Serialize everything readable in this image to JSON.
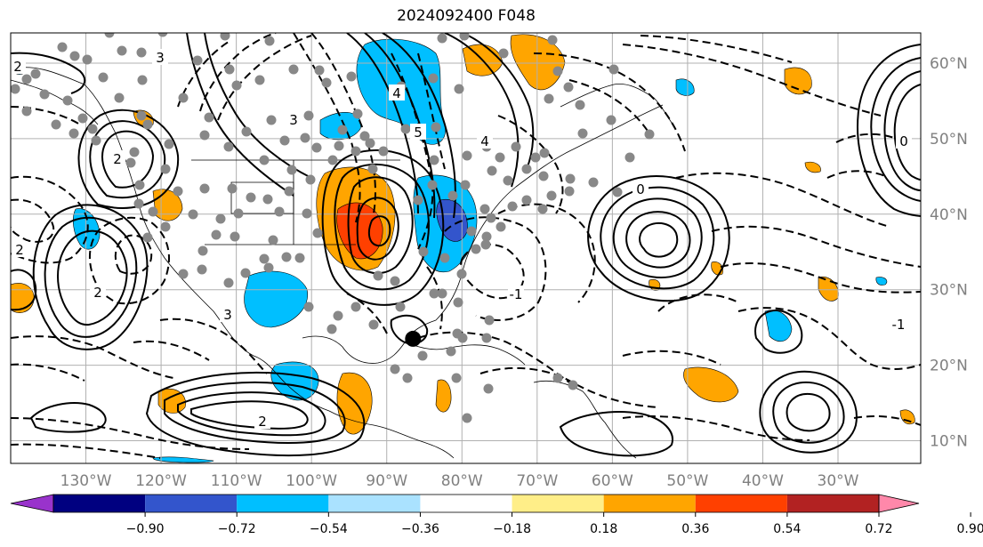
{
  "title": "2024092400 F048",
  "map": {
    "projection": "PlateCarree",
    "lon_range": [
      -140,
      -19
    ],
    "lat_range": [
      7,
      64
    ],
    "lon_ticks": [
      {
        "value": -130,
        "label": "130°W"
      },
      {
        "value": -120,
        "label": "120°W"
      },
      {
        "value": -110,
        "label": "110°W"
      },
      {
        "value": -100,
        "label": "100°W"
      },
      {
        "value": -90,
        "label": "90°W"
      },
      {
        "value": -80,
        "label": "80°W"
      },
      {
        "value": -70,
        "label": "70°W"
      },
      {
        "value": -60,
        "label": "60°W"
      },
      {
        "value": -50,
        "label": "50°W"
      },
      {
        "value": -40,
        "label": "40°W"
      },
      {
        "value": -30,
        "label": "30°W"
      }
    ],
    "lat_ticks": [
      {
        "value": 60,
        "label": "60°N"
      },
      {
        "value": 50,
        "label": "50°N"
      },
      {
        "value": 40,
        "label": "40°N"
      },
      {
        "value": 30,
        "label": "30°N"
      },
      {
        "value": 20,
        "label": "20°N"
      },
      {
        "value": 10,
        "label": "10°N"
      }
    ],
    "grid": true,
    "contour_labels": [
      "2",
      "3",
      "4",
      "5",
      "0",
      "-1",
      "2",
      "2",
      "4",
      "3",
      "0",
      "-1",
      "2",
      "3",
      "2"
    ],
    "storm_marker": {
      "lon": -86.5,
      "lat": 23.5
    }
  },
  "colorbar": {
    "colors": [
      "#9933cc",
      "#000080",
      "#3355cc",
      "#00bfff",
      "#aae2ff",
      "#ffffff",
      "#ffee88",
      "#ffa500",
      "#ff4000",
      "#b22222",
      "#ff88aa"
    ],
    "tick_labels": [
      "−0.90",
      "−0.72",
      "−0.54",
      "−0.36",
      "−0.18",
      "0.18",
      "0.36",
      "0.54",
      "0.72",
      "0.90"
    ],
    "extend": "both"
  }
}
